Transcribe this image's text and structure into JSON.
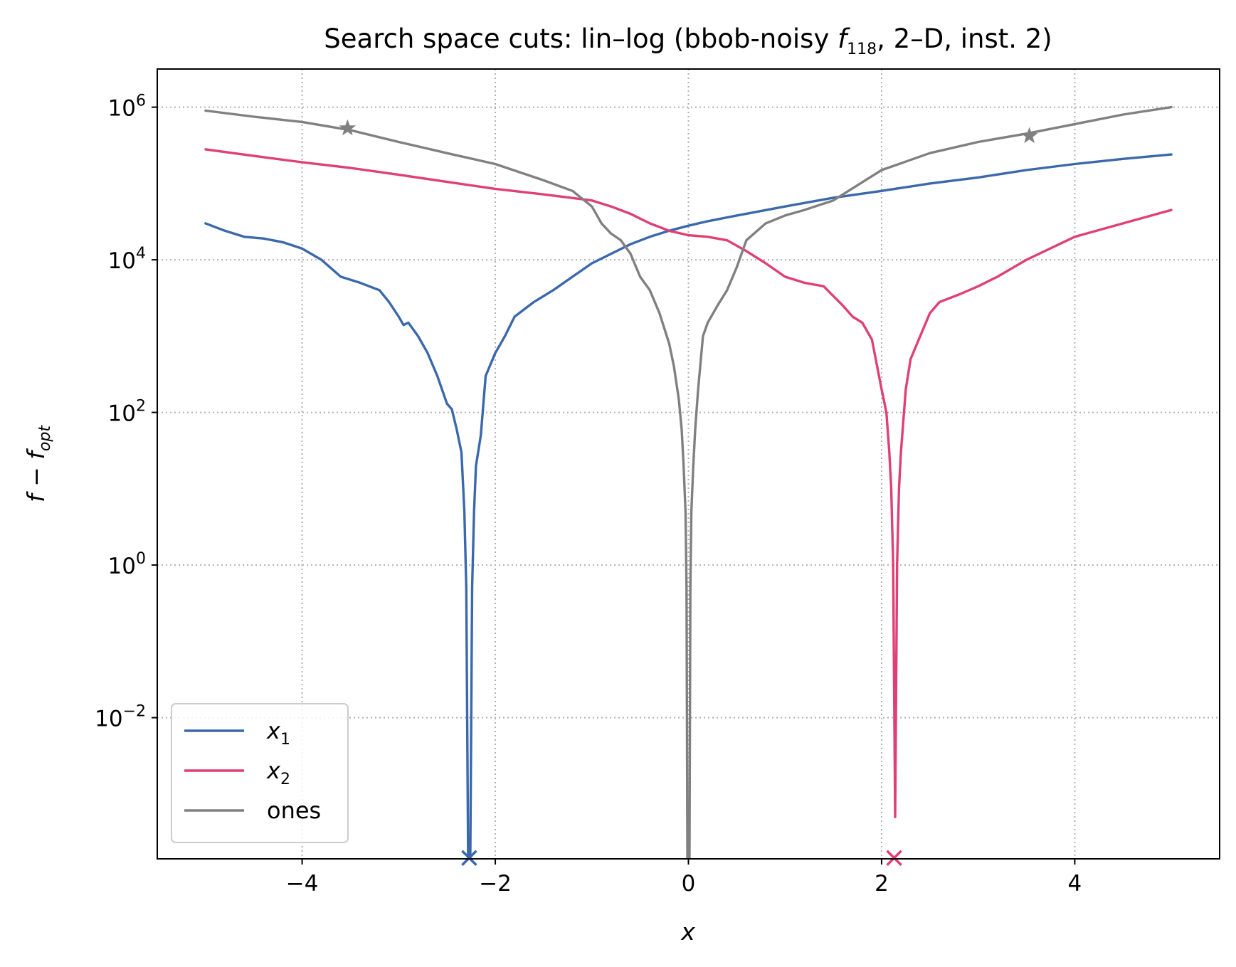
{
  "chart_data": {
    "type": "line",
    "title": {
      "prefix": "Search space cuts: lin–log (bbob-noisy ",
      "fn": "f",
      "fn_sub": "118",
      "suffix": ", 2–D, inst. 2)"
    },
    "xlabel": "x",
    "ylabel": {
      "base": "f − f",
      "sub": "opt"
    },
    "x_scale": "linear",
    "y_scale": "log",
    "xlim": [
      -5.5,
      5.5
    ],
    "ylim_log10": [
      -3.85,
      6.5
    ],
    "x_ticks": [
      {
        "value": -4,
        "label": "−4"
      },
      {
        "value": -2,
        "label": "−2"
      },
      {
        "value": 0,
        "label": "0"
      },
      {
        "value": 2,
        "label": "2"
      },
      {
        "value": 4,
        "label": "4"
      }
    ],
    "y_ticks": [
      {
        "value": 1000000,
        "base": "10",
        "exp": "6"
      },
      {
        "value": 10000,
        "base": "10",
        "exp": "4"
      },
      {
        "value": 100,
        "base": "10",
        "exp": "2"
      },
      {
        "value": 1,
        "base": "10",
        "exp": "0"
      },
      {
        "value": 0.01,
        "base": "10",
        "exp": "−2"
      }
    ],
    "grid": true,
    "legend_position": "lower-left",
    "series": [
      {
        "name": "x",
        "name_sub": "1",
        "color": "#3b68ab",
        "x": [
          -5,
          -4.8,
          -4.6,
          -4.4,
          -4.2,
          -4,
          -3.8,
          -3.6,
          -3.4,
          -3.2,
          -3.1,
          -3.0,
          -2.95,
          -2.9,
          -2.8,
          -2.7,
          -2.6,
          -2.5,
          -2.45,
          -2.4,
          -2.35,
          -2.32,
          -2.3,
          -2.28,
          -2.26,
          -2.24,
          -2.22,
          -2.2,
          -2.15,
          -2.1,
          -2.0,
          -1.9,
          -1.8,
          -1.6,
          -1.4,
          -1.2,
          -1.0,
          -0.8,
          -0.6,
          -0.4,
          -0.2,
          0,
          0.2,
          0.5,
          1.0,
          1.5,
          2.0,
          2.5,
          3.0,
          3.5,
          4.0,
          4.5,
          5.0
        ],
        "y": [
          30000,
          24000,
          20000,
          19000,
          17000,
          14000,
          10000,
          6000,
          5000,
          4000,
          2800,
          1800,
          1400,
          1500,
          1000,
          600,
          300,
          130,
          110,
          60,
          30,
          5,
          0.5,
          0.0001,
          0.0001,
          0.5,
          5,
          20,
          50,
          300,
          600,
          1000,
          1800,
          2800,
          4000,
          6000,
          9000,
          12000,
          16000,
          20000,
          24000,
          28000,
          32000,
          38000,
          50000,
          65000,
          80000,
          100000,
          120000,
          150000,
          180000,
          210000,
          240000
        ]
      },
      {
        "name": "x",
        "name_sub": "2",
        "color": "#e03f75",
        "x": [
          -5,
          -4.5,
          -4.0,
          -3.5,
          -3.0,
          -2.5,
          -2.0,
          -1.5,
          -1.0,
          -0.8,
          -0.6,
          -0.4,
          -0.2,
          0,
          0.2,
          0.4,
          0.6,
          0.8,
          1.0,
          1.2,
          1.4,
          1.6,
          1.7,
          1.8,
          1.9,
          2.0,
          2.05,
          2.08,
          2.1,
          2.12,
          2.14,
          2.16,
          2.18,
          2.2,
          2.25,
          2.3,
          2.4,
          2.5,
          2.6,
          2.8,
          3.0,
          3.2,
          3.5,
          4.0,
          4.5,
          5.0
        ],
        "y": [
          280000,
          230000,
          190000,
          160000,
          130000,
          105000,
          85000,
          72000,
          60000,
          50000,
          40000,
          30000,
          24000,
          21000,
          20000,
          18000,
          13000,
          9000,
          6000,
          5000,
          4500,
          2500,
          1800,
          1500,
          900,
          200,
          100,
          30,
          10,
          1,
          0.0005,
          1,
          10,
          30,
          200,
          500,
          1000,
          2000,
          2800,
          3500,
          4500,
          6000,
          10000,
          20000,
          30000,
          45000
        ]
      },
      {
        "name": "ones",
        "color": "#808080",
        "x": [
          -5,
          -4.5,
          -4.0,
          -3.5,
          -3.0,
          -2.5,
          -2.0,
          -1.5,
          -1.2,
          -1.0,
          -0.9,
          -0.8,
          -0.7,
          -0.6,
          -0.5,
          -0.4,
          -0.3,
          -0.2,
          -0.15,
          -0.1,
          -0.07,
          -0.05,
          -0.03,
          -0.02,
          -0.01,
          0,
          0.01,
          0.02,
          0.03,
          0.05,
          0.07,
          0.1,
          0.15,
          0.2,
          0.3,
          0.4,
          0.5,
          0.6,
          0.8,
          1.0,
          1.2,
          1.5,
          2.0,
          2.5,
          3.0,
          3.5,
          4.0,
          4.5,
          5.0
        ],
        "y": [
          900000,
          750000,
          640000,
          500000,
          350000,
          250000,
          180000,
          110000,
          80000,
          50000,
          30000,
          22000,
          18000,
          12000,
          6000,
          4000,
          2000,
          800,
          400,
          150,
          60,
          20,
          5,
          0.5,
          0.0001,
          0.0001,
          0.0001,
          0.5,
          5,
          20,
          60,
          200,
          1000,
          1500,
          2500,
          4000,
          8000,
          18000,
          30000,
          38000,
          45000,
          60000,
          150000,
          250000,
          350000,
          450000,
          600000,
          800000,
          1000000
        ]
      }
    ],
    "markers": [
      {
        "type": "star",
        "x": -3.53,
        "y": 530000,
        "color": "#808080"
      },
      {
        "type": "star",
        "x": 3.53,
        "y": 420000,
        "color": "#808080"
      },
      {
        "type": "cross",
        "x": -2.27,
        "y": 0.000145,
        "color": "#3b68ab"
      },
      {
        "type": "cross",
        "x": 2.13,
        "y": 0.000145,
        "color": "#e03f75"
      }
    ]
  }
}
